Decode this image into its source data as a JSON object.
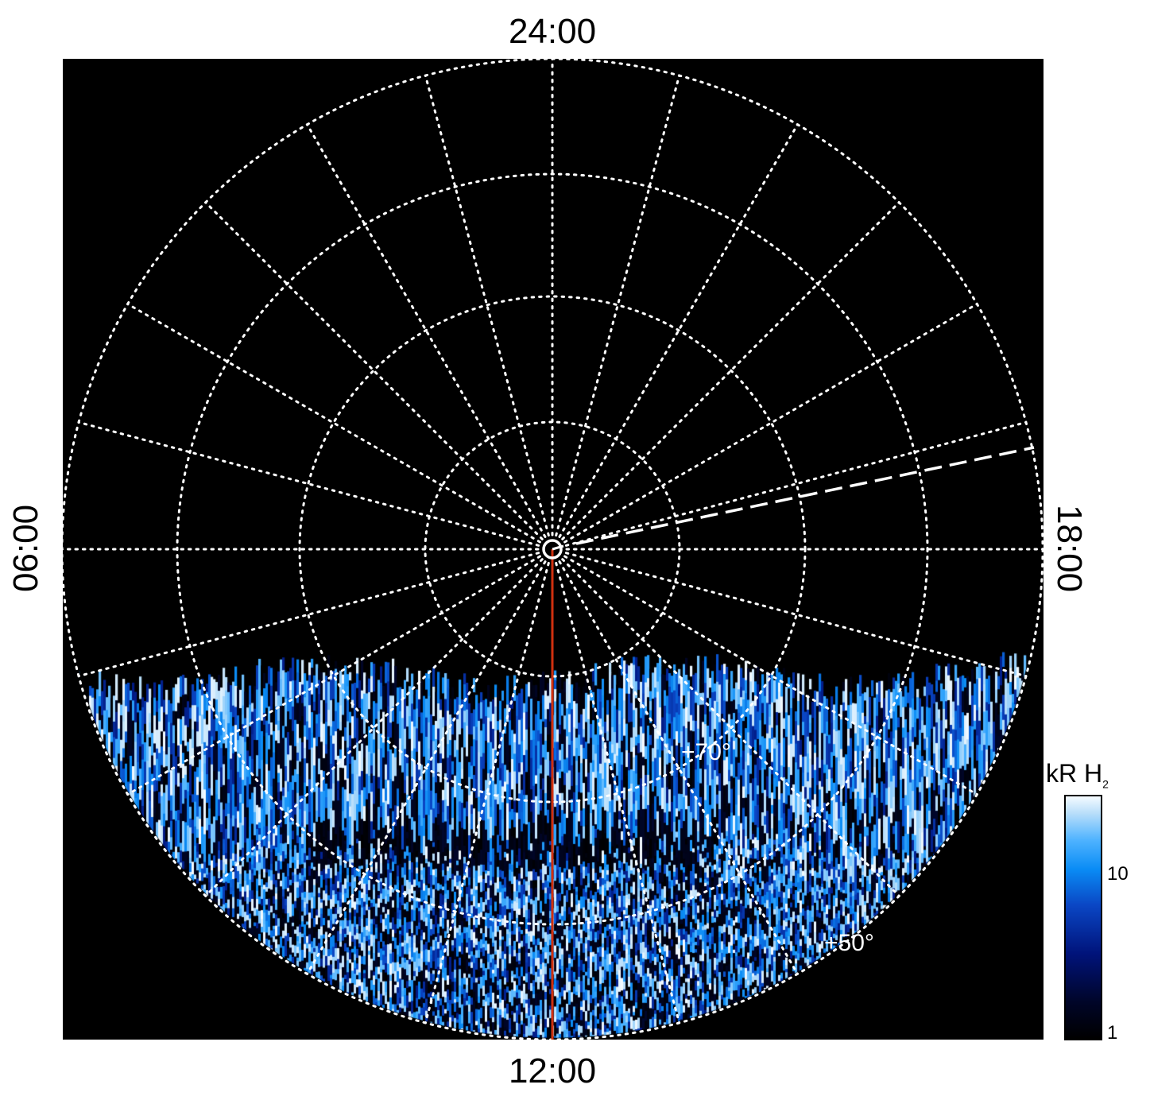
{
  "chart_data": {
    "type": "heatmap",
    "projection": "polar",
    "description_of_axes": "local time around the pole, latitude rings",
    "local_time_labels": {
      "top": "24:00",
      "bottom": "12:00",
      "left": "06:00",
      "right": "18:00"
    },
    "latitude_ring_labels": [
      "+70°",
      "+50°"
    ],
    "latitude_rings_deg": [
      80,
      70,
      60,
      50
    ],
    "local_time_spokes_hours": 1,
    "grid": true,
    "colorbar": {
      "title": "kR H",
      "title_subscript": "2",
      "scale": "log",
      "range": [
        1,
        30
      ],
      "tick_labels": [
        "1",
        "10"
      ],
      "colormap": [
        "#000000",
        "#00137a",
        "#0a8cf5",
        "#f5fbff"
      ]
    },
    "colors": {
      "background": "#000000",
      "grid": "#ffffff",
      "meridian_line": "#d0300f",
      "dashed_line": "#ffffff"
    },
    "data_coverage": "lower (dayside) half of the map, from about 08:00 to 16:30 local time"
  }
}
